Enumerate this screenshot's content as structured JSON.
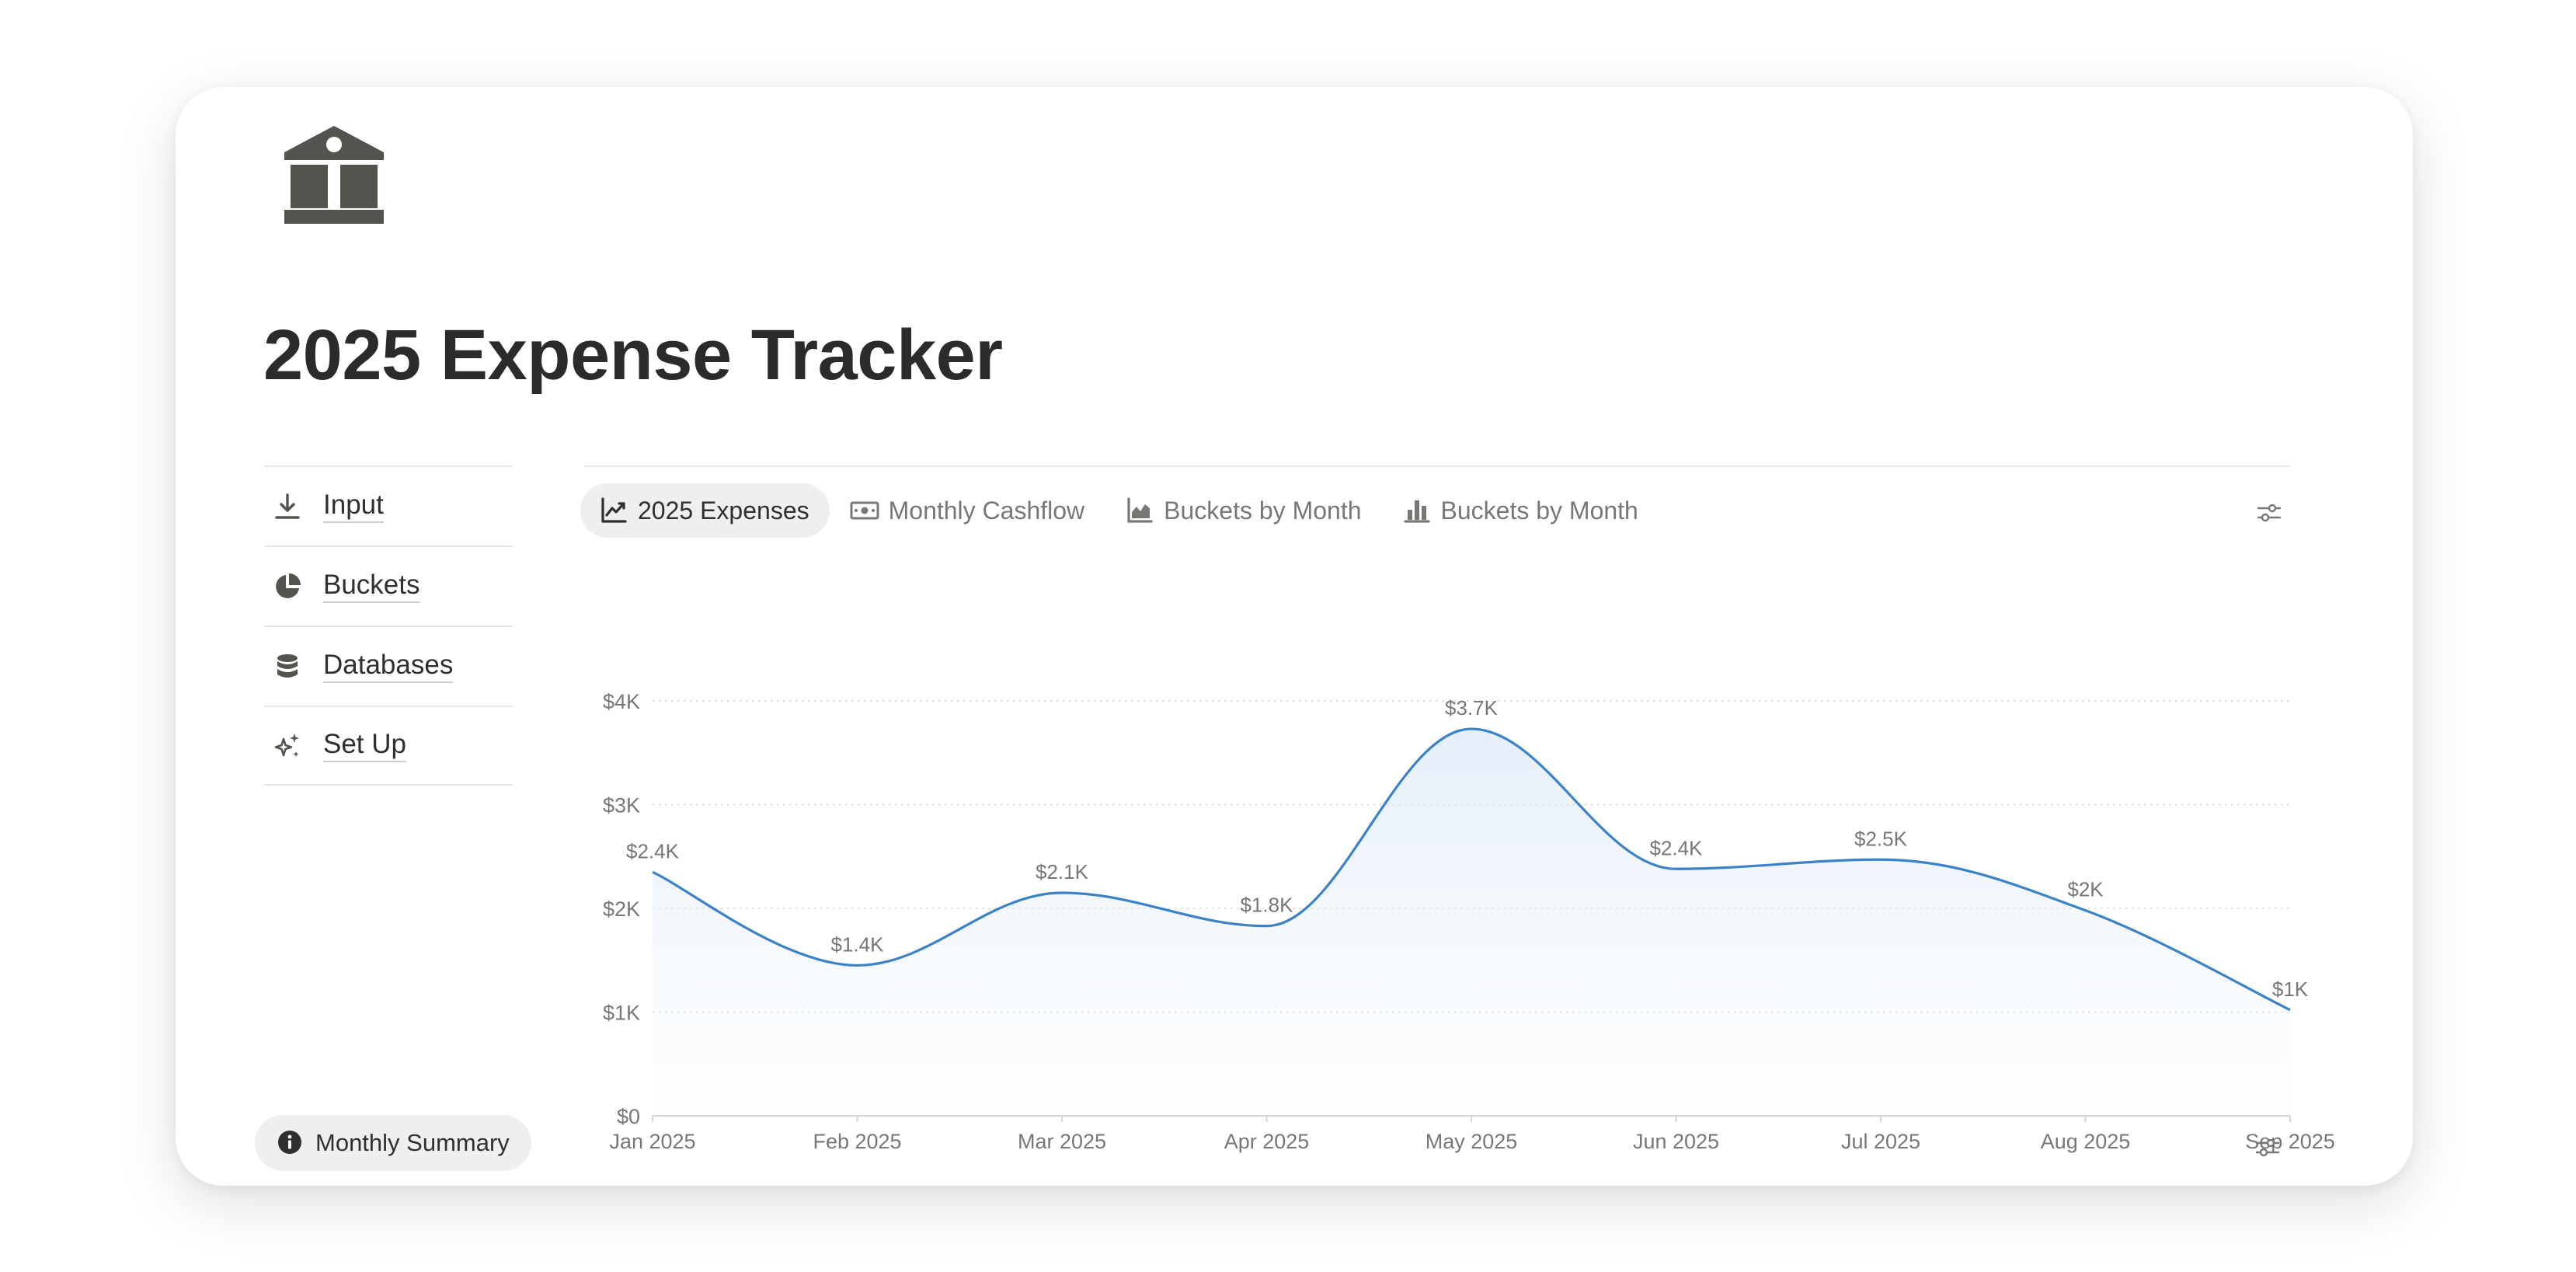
{
  "page": {
    "title": "2025 Expense Tracker",
    "icon": "bank-icon"
  },
  "nav": {
    "items": [
      {
        "label": "Input",
        "icon": "download-icon"
      },
      {
        "label": "Buckets",
        "icon": "pie-chart-icon"
      },
      {
        "label": "Databases",
        "icon": "database-icon"
      },
      {
        "label": "Set Up",
        "icon": "sparkles-icon"
      }
    ]
  },
  "tabs": [
    {
      "label": "2025 Expenses",
      "icon": "line-chart-icon",
      "active": true
    },
    {
      "label": "Monthly Cashflow",
      "icon": "money-icon",
      "active": false
    },
    {
      "label": "Buckets by Month",
      "icon": "area-chart-icon",
      "active": false
    },
    {
      "label": "Buckets by Month",
      "icon": "bar-chart-icon",
      "active": false
    }
  ],
  "summary": {
    "label": "Monthly Summary",
    "icon": "info-icon"
  },
  "colors": {
    "line": "#3b82c8",
    "text_muted": "#787774",
    "icon": "#55534e"
  },
  "chart_data": {
    "type": "area",
    "x": [
      "Jan 2025",
      "Feb 2025",
      "Mar 2025",
      "Apr 2025",
      "May 2025",
      "Jun 2025",
      "Jul 2025",
      "Aug 2025",
      "Sep 2025"
    ],
    "values": [
      2350,
      1450,
      2150,
      1830,
      3730,
      2380,
      2470,
      1980,
      1020
    ],
    "data_labels": [
      "$2.4K",
      "$1.4K",
      "$2.1K",
      "$1.8K",
      "$3.7K",
      "$2.4K",
      "$2.5K",
      "$2K",
      "$1K"
    ],
    "yticks": [
      0,
      1000,
      2000,
      3000,
      4000
    ],
    "ytick_labels": [
      "$0",
      "$1K",
      "$2K",
      "$3K",
      "$4K"
    ],
    "ylim": [
      0,
      4000
    ],
    "grid": true,
    "legend": false,
    "title": "",
    "xlabel": "",
    "ylabel": ""
  }
}
